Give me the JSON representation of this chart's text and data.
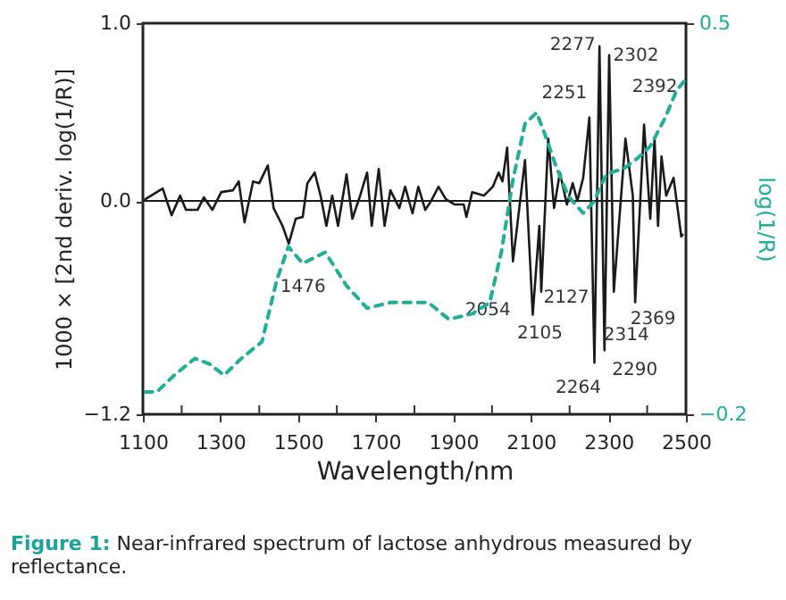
{
  "chart_data": {
    "type": "line",
    "xlabel": "Wavelength/nm",
    "ylabel": "1000 × [2nd deriv. log(1/R)]",
    "y2label": "log(1/R)",
    "xlim": [
      1100,
      2500
    ],
    "xticks": [
      1100,
      {
        "value": 1200,
        "label": null
      },
      1300,
      {
        "value": 1400,
        "label": null
      },
      1500,
      {
        "value": 1600,
        "label": null
      },
      1700,
      {
        "value": 1800,
        "label": null
      },
      1900,
      {
        "value": 2000,
        "label": null
      },
      2100,
      {
        "value": 2200,
        "label": null
      },
      2300,
      {
        "value": 2400,
        "label": null
      },
      2500
    ],
    "ylim": [
      -1.2,
      1.0
    ],
    "yticks": [
      {
        "value": -1.2,
        "label": "−1.2"
      },
      {
        "value": 0,
        "label": "0.0"
      },
      {
        "value": 1.0,
        "label": "1.0"
      }
    ],
    "y2lim": [
      -0.2,
      0.5
    ],
    "y2ticks": [
      {
        "value": -0.2,
        "label": "−0.2"
      },
      {
        "value": 0.5,
        "label": "0.5"
      }
    ],
    "grid": false,
    "series": [
      {
        "color": "#1a1a1a",
        "line_style": "solid",
        "x": [
          1106,
          1151,
          1174,
          1196,
          1211,
          1241,
          1257,
          1279,
          1302,
          1332,
          1347,
          1362,
          1384,
          1400,
          1422,
          1437,
          1460,
          1476,
          1494,
          1512,
          1524,
          1543,
          1558,
          1573,
          1588,
          1603,
          1625,
          1640,
          1660,
          1678,
          1690,
          1708,
          1723,
          1738,
          1761,
          1776,
          1795,
          1810,
          1828,
          1843,
          1862,
          1881,
          1904,
          1927,
          1934,
          1949,
          1979,
          2002,
          2017,
          2027,
          2039,
          2054,
          2085,
          2105,
          2122,
          2127,
          2145,
          2160,
          2175,
          2193,
          2208,
          2220,
          2235,
          2251,
          2264,
          2277,
          2290,
          2302,
          2314,
          2344,
          2363,
          2369,
          2392,
          2408,
          2419,
          2428,
          2437,
          2449,
          2468,
          2488,
          2491
        ],
        "values": [
          0.01,
          0.07,
          -0.08,
          0.03,
          -0.05,
          -0.05,
          0.02,
          -0.05,
          0.05,
          0.06,
          0.11,
          -0.12,
          0.11,
          0.1,
          0.2,
          -0.04,
          -0.14,
          -0.24,
          -0.1,
          -0.09,
          0.1,
          0.16,
          0.03,
          -0.14,
          0.03,
          -0.14,
          0.15,
          -0.1,
          0.03,
          0.16,
          -0.14,
          0.18,
          -0.14,
          0.06,
          -0.04,
          0.08,
          -0.07,
          0.08,
          -0.05,
          0.0,
          0.08,
          0.01,
          -0.02,
          -0.02,
          -0.09,
          0.05,
          0.03,
          0.08,
          0.16,
          0.11,
          0.3,
          -0.34,
          0.23,
          -0.64,
          -0.14,
          -0.51,
          0.35,
          -0.04,
          0.16,
          -0.02,
          0.1,
          0.0,
          0.13,
          0.47,
          -0.91,
          0.87,
          -0.84,
          0.82,
          -0.51,
          0.35,
          0.03,
          -0.57,
          0.43,
          -0.1,
          0.35,
          -0.14,
          0.25,
          0.03,
          0.13,
          -0.2,
          -0.19
        ]
      },
      {
        "color": "#1fae96",
        "axis": "y2",
        "line_style": "dashed",
        "x": [
          1106,
          1136,
          1181,
          1234,
          1272,
          1309,
          1354,
          1407,
          1445,
          1475,
          1512,
          1570,
          1625,
          1678,
          1738,
          1783,
          1836,
          1889,
          1949,
          1994,
          2024,
          2054,
          2085,
          2115,
          2137,
          2167,
          2197,
          2235,
          2262,
          2295,
          2340,
          2378,
          2408,
          2446,
          2476,
          2500
        ],
        "values": [
          -0.16,
          -0.16,
          -0.13,
          -0.1,
          -0.11,
          -0.13,
          -0.1,
          -0.07,
          0.04,
          0.1,
          0.07,
          0.09,
          0.03,
          -0.01,
          0.0,
          0.0,
          0.0,
          -0.03,
          -0.02,
          0.0,
          0.09,
          0.22,
          0.32,
          0.34,
          0.3,
          0.24,
          0.19,
          0.16,
          0.18,
          0.23,
          0.24,
          0.26,
          0.28,
          0.33,
          0.38,
          0.4
        ]
      }
    ],
    "ref_lines": [
      {
        "axis": "y",
        "value": 0,
        "color": "#1a1a1a"
      }
    ],
    "annotations": [
      {
        "text": "1476",
        "x": 1476,
        "y": -0.24
      },
      {
        "text": "2054",
        "x": 2054,
        "y": -0.34
      },
      {
        "text": "2105",
        "x": 2105,
        "y": -0.64
      },
      {
        "text": "2127",
        "x": 2127,
        "y": -0.51
      },
      {
        "text": "2251",
        "x": 2251,
        "y": 0.47
      },
      {
        "text": "2264",
        "x": 2264,
        "y": -0.91
      },
      {
        "text": "2277",
        "x": 2277,
        "y": 0.87
      },
      {
        "text": "2290",
        "x": 2290,
        "y": -0.84
      },
      {
        "text": "2302",
        "x": 2302,
        "y": 0.82
      },
      {
        "text": "2314",
        "x": 2314,
        "y": -0.51
      },
      {
        "text": "2369",
        "x": 2369,
        "y": -0.57
      },
      {
        "text": "2392",
        "x": 2392,
        "y": 0.43
      },
      "Figure 1:",
      "Near-infrared spectrum of lactose anhydrous measured by reflectance."
    ]
  }
}
